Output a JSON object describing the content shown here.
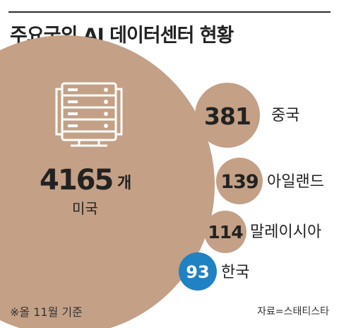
{
  "header": {
    "title": "주요국의 AI 데이터센터 현황"
  },
  "footer": {
    "note": "※올 11월 기준",
    "source": "자료=스태티스타"
  },
  "icon": "server-rack-icon",
  "colors": {
    "bubble": "#c4a086",
    "highlight": "#1f82c2",
    "text": "#222222",
    "icon": "#ffffff"
  },
  "chart_data": {
    "type": "bubble",
    "title": "주요국의 AI 데이터센터 현황",
    "unit": "개",
    "categories": [
      "미국",
      "중국",
      "아일랜드",
      "말레이시아",
      "한국"
    ],
    "values": [
      4165,
      381,
      139,
      114,
      93
    ],
    "highlight": "한국"
  }
}
